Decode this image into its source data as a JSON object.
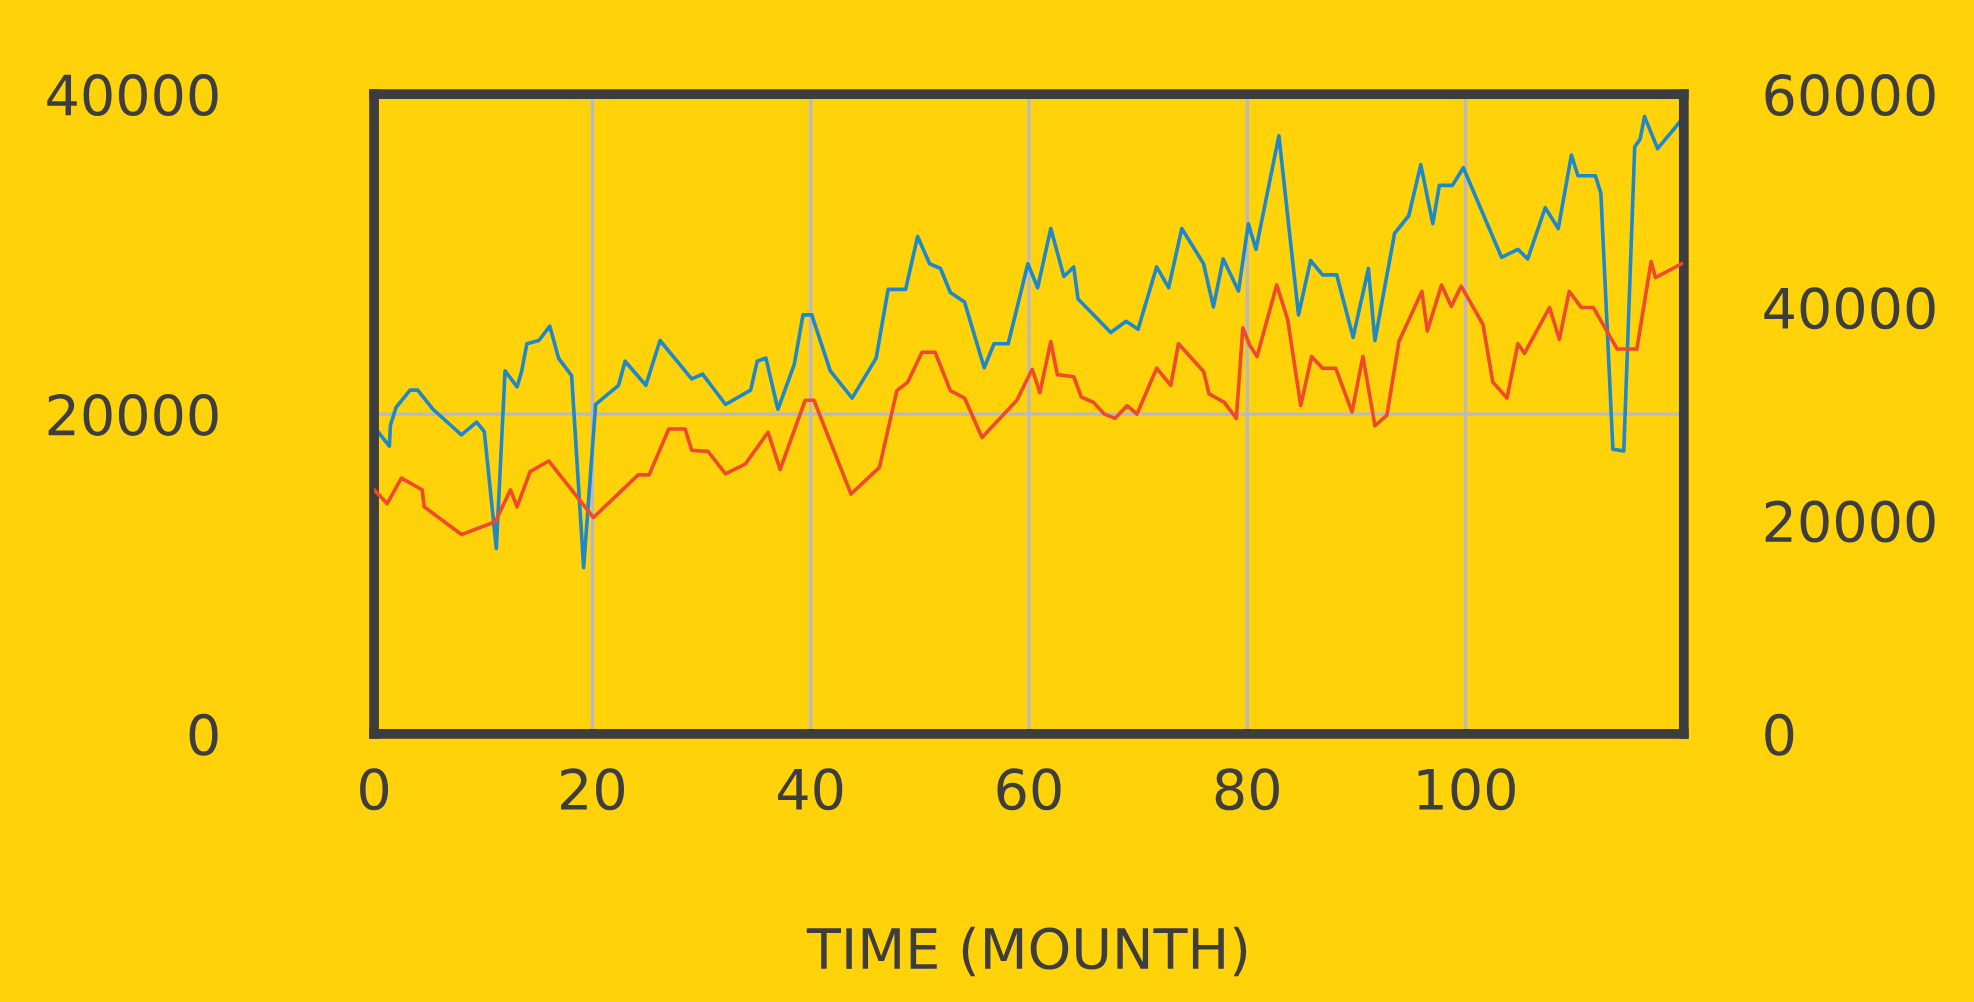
{
  "chart_data": {
    "type": "line",
    "xlabel": "TIME (MOUNTH)",
    "xlim": [
      0,
      120
    ],
    "xticks": [
      0,
      20,
      40,
      60,
      80,
      100
    ],
    "ylim": [
      0,
      40000
    ],
    "yticks": [
      0,
      20000,
      40000
    ],
    "y2lim": [
      0,
      60000
    ],
    "y2ticks": [
      0,
      20000,
      40000,
      60000
    ],
    "grid": true,
    "line_style": "solid",
    "marker": "none",
    "series": [
      {
        "color": "#1e88c8",
        "x": [
          0,
          1.4,
          1.5,
          2.0,
          3.3,
          4.0,
          5.4,
          8.0,
          9.4,
          10.1,
          11.2,
          12.0,
          13.1,
          13.5,
          14.0,
          15.1,
          16.1,
          16.9,
          18.1,
          19.2,
          20.3,
          22.4,
          23.0,
          24.9,
          26.2,
          29.1,
          30.1,
          32.2,
          34.5,
          35.1,
          35.9,
          37.0,
          38.5,
          39.3,
          40.1,
          41.8,
          43.8,
          46.0,
          47.1,
          48.7,
          49.8,
          50.9,
          51.9,
          52.8,
          54.1,
          55.9,
          56.8,
          58.1,
          59.9,
          60.8,
          62.0,
          63.2,
          64.1,
          64.5,
          67.5,
          68.9,
          70.0,
          71.7,
          72.8,
          74.0,
          76.0,
          76.9,
          77.8,
          79.2,
          80.1,
          80.8,
          82.9,
          84.7,
          85.8,
          86.9,
          88.2,
          89.7,
          91.1,
          91.7,
          93.5,
          94.8,
          95.9,
          97.0,
          97.6,
          98.8,
          99.8,
          103.3,
          104.8,
          105.7,
          107.3,
          108.5,
          109.7,
          110.3,
          111.9,
          112.4,
          113.5,
          114.5,
          115.5,
          116.0,
          116.4,
          117.6,
          119.8
        ],
        "values": [
          19200,
          18000,
          19300,
          20400,
          21500,
          21500,
          20300,
          18700,
          19500,
          18900,
          11600,
          22700,
          21700,
          22600,
          24400,
          24600,
          25500,
          23500,
          22400,
          10400,
          20600,
          21800,
          23300,
          21800,
          24600,
          22200,
          22500,
          20600,
          21500,
          23300,
          23500,
          20300,
          23100,
          26200,
          26200,
          22700,
          21000,
          23500,
          27800,
          27800,
          31100,
          29400,
          29100,
          27600,
          27000,
          22900,
          24400,
          24400,
          29400,
          27900,
          31600,
          28600,
          29200,
          27200,
          25100,
          25800,
          25300,
          29200,
          27900,
          31600,
          29400,
          26700,
          29700,
          27700,
          31900,
          30300,
          37400,
          26200,
          29600,
          28700,
          28700,
          24800,
          29100,
          24600,
          31300,
          32400,
          35600,
          31900,
          34300,
          34300,
          35400,
          29800,
          30300,
          29700,
          32900,
          31600,
          36200,
          34900,
          34900,
          33800,
          17800,
          17700,
          36700,
          37200,
          38600,
          36600,
          38400
        ]
      },
      {
        "color": "#f04a2c",
        "axis": "y2",
        "x": [
          0,
          1.2,
          2.5,
          4.4,
          4.6,
          8.0,
          11.1,
          12.5,
          13.1,
          14.3,
          16.0,
          20.1,
          24.2,
          25.2,
          27.0,
          28.5,
          29.1,
          30.6,
          32.2,
          34.0,
          36.1,
          37.2,
          39.5,
          40.3,
          43.7,
          46.3,
          47.9,
          48.9,
          50.2,
          51.4,
          52.8,
          54.1,
          55.7,
          58.9,
          60.3,
          61.0,
          62.0,
          62.6,
          64.1,
          64.8,
          65.9,
          66.9,
          67.9,
          69.0,
          69.9,
          71.7,
          73.0,
          73.7,
          76.0,
          76.5,
          77.9,
          79.0,
          79.6,
          80.2,
          80.9,
          82.7,
          83.7,
          84.9,
          85.9,
          86.9,
          88.1,
          89.6,
          90.6,
          91.7,
          92.8,
          93.9,
          96.0,
          96.5,
          97.8,
          98.7,
          99.6,
          101.6,
          102.5,
          103.8,
          104.8,
          105.4,
          107.7,
          108.6,
          109.5,
          110.6,
          111.7,
          113.9,
          115.7,
          117.0,
          117.4,
          119.8
        ],
        "values": [
          22900,
          21600,
          24000,
          22900,
          21300,
          18700,
          19900,
          22900,
          21300,
          24600,
          25600,
          20300,
          24300,
          24300,
          28600,
          28600,
          26600,
          26500,
          24400,
          25300,
          28300,
          24800,
          31300,
          31300,
          22500,
          25000,
          32200,
          33000,
          35800,
          35800,
          32200,
          31500,
          27800,
          31300,
          34200,
          32000,
          36800,
          33700,
          33500,
          31600,
          31100,
          30000,
          29600,
          30800,
          30000,
          34300,
          32700,
          36600,
          34000,
          31900,
          31100,
          29600,
          38100,
          36500,
          35400,
          42100,
          38900,
          30800,
          35400,
          34300,
          34300,
          30200,
          35400,
          28900,
          29900,
          36800,
          41500,
          37800,
          42100,
          40100,
          42000,
          38400,
          33000,
          31500,
          36600,
          35700,
          40000,
          37000,
          41500,
          40000,
          40000,
          36100,
          36100,
          44300,
          42800,
          44100
        ]
      }
    ]
  }
}
